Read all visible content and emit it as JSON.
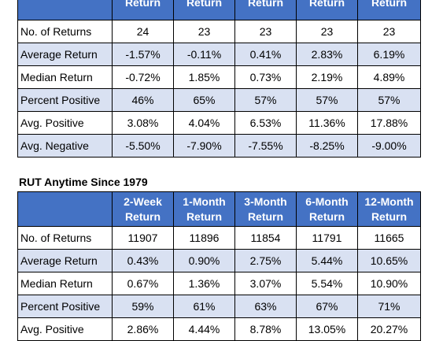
{
  "table1": {
    "headers": [
      {
        "line1": "",
        "line2": ""
      },
      {
        "line1": "",
        "line2": "Return"
      },
      {
        "line1": "",
        "line2": "Return"
      },
      {
        "line1": "",
        "line2": "Return"
      },
      {
        "line1": "",
        "line2": "Return"
      },
      {
        "line1": "",
        "line2": "Return"
      }
    ],
    "rows": [
      {
        "label": "No. of Returns",
        "values": [
          "24",
          "23",
          "23",
          "23",
          "23"
        ]
      },
      {
        "label": "Average Return",
        "values": [
          "-1.57%",
          "-0.11%",
          "0.41%",
          "2.83%",
          "6.19%"
        ]
      },
      {
        "label": "Median Return",
        "values": [
          "-0.72%",
          "1.85%",
          "0.73%",
          "2.19%",
          "4.89%"
        ]
      },
      {
        "label": "Percent Positive",
        "values": [
          "46%",
          "65%",
          "57%",
          "57%",
          "57%"
        ]
      },
      {
        "label": "Avg. Positive",
        "values": [
          "3.08%",
          "4.04%",
          "6.53%",
          "11.36%",
          "17.88%"
        ]
      },
      {
        "label": "Avg. Negative",
        "values": [
          "-5.50%",
          "-7.90%",
          "-7.55%",
          "-8.25%",
          "-9.00%"
        ]
      }
    ]
  },
  "table2": {
    "title": "RUT Anytime Since 1979",
    "headers": [
      {
        "line1": "",
        "line2": ""
      },
      {
        "line1": "2-Week",
        "line2": "Return"
      },
      {
        "line1": "1-Month",
        "line2": "Return"
      },
      {
        "line1": "3-Month",
        "line2": "Return"
      },
      {
        "line1": "6-Month",
        "line2": "Return"
      },
      {
        "line1": "12-Month",
        "line2": "Return"
      }
    ],
    "rows": [
      {
        "label": "No. of Returns",
        "values": [
          "11907",
          "11896",
          "11854",
          "11791",
          "11665"
        ]
      },
      {
        "label": "Average Return",
        "values": [
          "0.43%",
          "0.90%",
          "2.75%",
          "5.44%",
          "10.65%"
        ]
      },
      {
        "label": "Median Return",
        "values": [
          "0.67%",
          "1.36%",
          "3.07%",
          "5.54%",
          "10.90%"
        ]
      },
      {
        "label": "Percent Positive",
        "values": [
          "59%",
          "61%",
          "63%",
          "67%",
          "71%"
        ]
      },
      {
        "label": "Avg. Positive",
        "values": [
          "2.86%",
          "4.44%",
          "8.78%",
          "13.05%",
          "20.27%"
        ]
      }
    ]
  },
  "colors": {
    "header_fill": "#4472c4",
    "band_fill": "#d9e1f2"
  }
}
